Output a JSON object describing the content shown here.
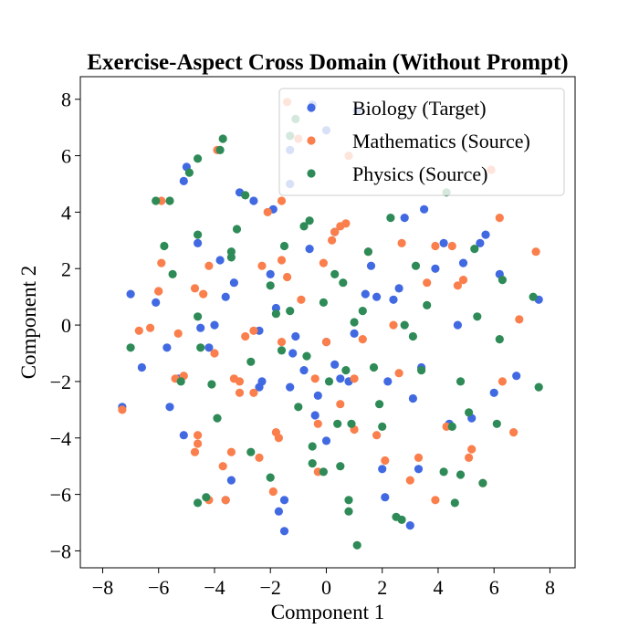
{
  "chart_data": {
    "type": "scatter",
    "title": "Exercise-Aspect Cross Domain (Without Prompt)",
    "xlabel": "Component 1",
    "ylabel": "Component 2",
    "xlim": [
      -8.8,
      8.9
    ],
    "ylim": [
      -8.6,
      8.8
    ],
    "xticks": [
      -8,
      -6,
      -4,
      -2,
      0,
      2,
      4,
      6,
      8
    ],
    "yticks": [
      -8,
      -6,
      -4,
      -2,
      0,
      2,
      4,
      6,
      8
    ],
    "xtick_labels": [
      "−8",
      "−6",
      "−4",
      "−2",
      "0",
      "2",
      "4",
      "6",
      "8"
    ],
    "ytick_labels": [
      "−8",
      "−6",
      "−4",
      "−2",
      "0",
      "2",
      "4",
      "6",
      "8"
    ],
    "grid": false,
    "legend_position": "top-right",
    "series": [
      {
        "name": "Biology (Target)",
        "color": "#4169E1",
        "points": [
          [
            -7.0,
            1.1
          ],
          [
            -6.6,
            -1.5
          ],
          [
            -7.3,
            -2.9
          ],
          [
            -6.1,
            0.8
          ],
          [
            -5.7,
            -0.8
          ],
          [
            -5.6,
            -2.9
          ],
          [
            -5.3,
            -1.9
          ],
          [
            -5.1,
            -3.9
          ],
          [
            -5.0,
            5.6
          ],
          [
            -5.1,
            5.1
          ],
          [
            -4.6,
            2.9
          ],
          [
            -4.5,
            -0.1
          ],
          [
            -4.2,
            -0.8
          ],
          [
            -4.0,
            0.0
          ],
          [
            -3.8,
            2.3
          ],
          [
            -3.6,
            1.0
          ],
          [
            -3.6,
            -6.2
          ],
          [
            -3.4,
            -5.5
          ],
          [
            -3.3,
            1.5
          ],
          [
            -3.1,
            4.7
          ],
          [
            -2.6,
            4.4
          ],
          [
            -2.4,
            -0.2
          ],
          [
            -2.4,
            -2.2
          ],
          [
            -2.3,
            -2.0
          ],
          [
            -2.0,
            1.8
          ],
          [
            -1.9,
            4.1
          ],
          [
            -1.8,
            0.6
          ],
          [
            -1.7,
            -6.6
          ],
          [
            -1.5,
            -6.2
          ],
          [
            -1.5,
            -7.3
          ],
          [
            -1.3,
            6.2
          ],
          [
            -1.3,
            -2.2
          ],
          [
            -1.2,
            -1.0
          ],
          [
            -1.1,
            -0.4
          ],
          [
            -0.8,
            -1.6
          ],
          [
            -0.6,
            2.7
          ],
          [
            -0.4,
            -3.2
          ],
          [
            -0.3,
            -2.5
          ],
          [
            0.0,
            -4.1
          ],
          [
            0.0,
            -0.6
          ],
          [
            0.3,
            -1.4
          ],
          [
            0.3,
            3.3
          ],
          [
            0.5,
            -1.9
          ],
          [
            0.8,
            -2.0
          ],
          [
            1.0,
            -0.3
          ],
          [
            1.4,
            1.1
          ],
          [
            1.6,
            2.1
          ],
          [
            1.8,
            1.0
          ],
          [
            2.0,
            -5.1
          ],
          [
            2.1,
            -6.1
          ],
          [
            2.2,
            -2.0
          ],
          [
            2.4,
            0.9
          ],
          [
            2.6,
            1.3
          ],
          [
            2.8,
            3.8
          ],
          [
            3.0,
            -7.1
          ],
          [
            3.1,
            -2.6
          ],
          [
            3.3,
            -5.1
          ],
          [
            3.4,
            -1.5
          ],
          [
            3.5,
            4.1
          ],
          [
            3.9,
            2.0
          ],
          [
            4.2,
            2.9
          ],
          [
            4.4,
            -3.5
          ],
          [
            4.7,
            0.0
          ],
          [
            4.9,
            2.2
          ],
          [
            5.2,
            -3.3
          ],
          [
            5.5,
            2.9
          ],
          [
            5.7,
            3.2
          ],
          [
            6.0,
            -2.4
          ],
          [
            6.2,
            1.8
          ],
          [
            6.8,
            -1.8
          ],
          [
            7.6,
            0.9
          ],
          [
            -1.3,
            5.0
          ],
          [
            -0.5,
            7.8
          ],
          [
            1.1,
            7.6
          ],
          [
            0.0,
            6.9
          ]
        ]
      },
      {
        "name": "Mathematics (Source)",
        "color": "#FA7F4C",
        "points": [
          [
            -7.3,
            -3.0
          ],
          [
            -6.7,
            -0.2
          ],
          [
            -6.3,
            -0.1
          ],
          [
            -6.0,
            1.2
          ],
          [
            -5.9,
            2.2
          ],
          [
            -5.9,
            4.4
          ],
          [
            -6.0,
            1.2
          ],
          [
            -5.4,
            -1.9
          ],
          [
            -5.3,
            -0.3
          ],
          [
            -5.1,
            -1.8
          ],
          [
            -4.7,
            1.3
          ],
          [
            -4.7,
            -4.5
          ],
          [
            -4.6,
            -3.9
          ],
          [
            -4.6,
            -4.2
          ],
          [
            -4.4,
            1.1
          ],
          [
            -4.2,
            2.1
          ],
          [
            -4.2,
            -6.2
          ],
          [
            -4.0,
            -1.0
          ],
          [
            -3.9,
            6.2
          ],
          [
            -3.7,
            -5.0
          ],
          [
            -3.6,
            -6.2
          ],
          [
            -3.4,
            -4.5
          ],
          [
            -3.3,
            -1.9
          ],
          [
            -3.1,
            -2.0
          ],
          [
            -2.9,
            -0.4
          ],
          [
            -2.6,
            -0.2
          ],
          [
            -2.6,
            -2.4
          ],
          [
            -2.4,
            -4.7
          ],
          [
            -2.1,
            4.0
          ],
          [
            -1.9,
            -5.9
          ],
          [
            -1.8,
            -3.8
          ],
          [
            -1.7,
            -4.0
          ],
          [
            -1.6,
            2.3
          ],
          [
            -1.6,
            4.4
          ],
          [
            -1.4,
            1.7
          ],
          [
            -1.4,
            7.9
          ],
          [
            -1.0,
            6.6
          ],
          [
            -0.9,
            0.9
          ],
          [
            -0.4,
            -1.9
          ],
          [
            -0.3,
            -3.5
          ],
          [
            -0.1,
            2.2
          ],
          [
            0.0,
            -0.6
          ],
          [
            0.2,
            3.0
          ],
          [
            0.3,
            3.3
          ],
          [
            0.5,
            3.5
          ],
          [
            0.5,
            -2.8
          ],
          [
            0.7,
            3.6
          ],
          [
            0.8,
            6.0
          ],
          [
            1.0,
            -3.7
          ],
          [
            1.3,
            -0.5
          ],
          [
            1.5,
            2.6
          ],
          [
            1.8,
            -3.9
          ],
          [
            2.1,
            -4.8
          ],
          [
            2.4,
            0.0
          ],
          [
            2.6,
            -1.7
          ],
          [
            2.7,
            2.9
          ],
          [
            3.0,
            -5.5
          ],
          [
            3.3,
            -4.7
          ],
          [
            3.6,
            1.5
          ],
          [
            3.9,
            -6.2
          ],
          [
            4.3,
            -3.6
          ],
          [
            4.5,
            2.8
          ],
          [
            4.7,
            1.4
          ],
          [
            4.9,
            1.6
          ],
          [
            5.1,
            -4.7
          ],
          [
            5.2,
            -4.4
          ],
          [
            5.6,
            -5.6
          ],
          [
            5.9,
            5.5
          ],
          [
            6.3,
            -2.0
          ],
          [
            6.9,
            0.2
          ],
          [
            7.5,
            2.6
          ],
          [
            -1.6,
            -0.6
          ],
          [
            -0.3,
            -5.2
          ],
          [
            1.0,
            -1.9
          ],
          [
            6.2,
            3.8
          ],
          [
            3.9,
            2.8
          ],
          [
            6.7,
            -3.8
          ],
          [
            -2.3,
            2.1
          ],
          [
            -3.1,
            -2.4
          ]
        ]
      },
      {
        "name": "Physics (Source)",
        "color": "#2E8B57",
        "points": [
          [
            -7.0,
            -0.8
          ],
          [
            -6.1,
            4.4
          ],
          [
            -5.8,
            2.8
          ],
          [
            -5.6,
            4.4
          ],
          [
            -5.5,
            1.8
          ],
          [
            -5.2,
            -2.0
          ],
          [
            -4.9,
            5.4
          ],
          [
            -4.6,
            5.9
          ],
          [
            -4.6,
            3.2
          ],
          [
            -4.6,
            0.3
          ],
          [
            -4.5,
            -0.8
          ],
          [
            -4.6,
            -6.3
          ],
          [
            -4.3,
            -6.1
          ],
          [
            -4.1,
            -2.1
          ],
          [
            -3.9,
            -3.3
          ],
          [
            -3.8,
            6.2
          ],
          [
            -3.7,
            6.6
          ],
          [
            -3.4,
            2.6
          ],
          [
            -3.4,
            2.4
          ],
          [
            -3.2,
            3.4
          ],
          [
            -2.9,
            4.6
          ],
          [
            -2.7,
            -1.3
          ],
          [
            -2.7,
            -4.5
          ],
          [
            -2.0,
            -5.4
          ],
          [
            -1.8,
            0.4
          ],
          [
            -1.6,
            -0.9
          ],
          [
            -1.5,
            2.8
          ],
          [
            -1.3,
            0.5
          ],
          [
            -1.1,
            7.3
          ],
          [
            -1.0,
            -2.9
          ],
          [
            -0.8,
            3.5
          ],
          [
            -0.6,
            3.7
          ],
          [
            -0.5,
            -4.9
          ],
          [
            -0.5,
            -4.3
          ],
          [
            -0.1,
            0.8
          ],
          [
            -0.1,
            -5.2
          ],
          [
            0.1,
            -2.0
          ],
          [
            0.3,
            1.8
          ],
          [
            0.4,
            -3.5
          ],
          [
            0.5,
            -5.0
          ],
          [
            0.6,
            1.5
          ],
          [
            0.7,
            -1.6
          ],
          [
            0.8,
            -6.6
          ],
          [
            0.8,
            -6.2
          ],
          [
            0.9,
            -3.5
          ],
          [
            1.0,
            0.1
          ],
          [
            1.1,
            -7.8
          ],
          [
            1.3,
            0.5
          ],
          [
            1.5,
            2.6
          ],
          [
            1.7,
            -1.5
          ],
          [
            1.9,
            -2.8
          ],
          [
            2.0,
            -3.6
          ],
          [
            2.3,
            3.8
          ],
          [
            2.5,
            -6.8
          ],
          [
            2.7,
            -6.9
          ],
          [
            2.8,
            0.0
          ],
          [
            3.1,
            -0.4
          ],
          [
            3.2,
            2.1
          ],
          [
            3.4,
            -1.6
          ],
          [
            3.6,
            0.7
          ],
          [
            4.2,
            -5.2
          ],
          [
            4.3,
            4.7
          ],
          [
            4.5,
            -3.6
          ],
          [
            4.6,
            -6.3
          ],
          [
            4.8,
            -5.3
          ],
          [
            5.1,
            -3.1
          ],
          [
            5.3,
            2.7
          ],
          [
            5.4,
            0.3
          ],
          [
            5.6,
            -5.6
          ],
          [
            6.1,
            -3.5
          ],
          [
            6.2,
            -0.5
          ],
          [
            6.3,
            1.6
          ],
          [
            7.4,
            1.0
          ],
          [
            7.6,
            -2.2
          ],
          [
            -2.0,
            1.4
          ],
          [
            -1.3,
            6.7
          ],
          [
            -0.7,
            -1.1
          ],
          [
            4.8,
            -2.0
          ]
        ]
      }
    ]
  }
}
